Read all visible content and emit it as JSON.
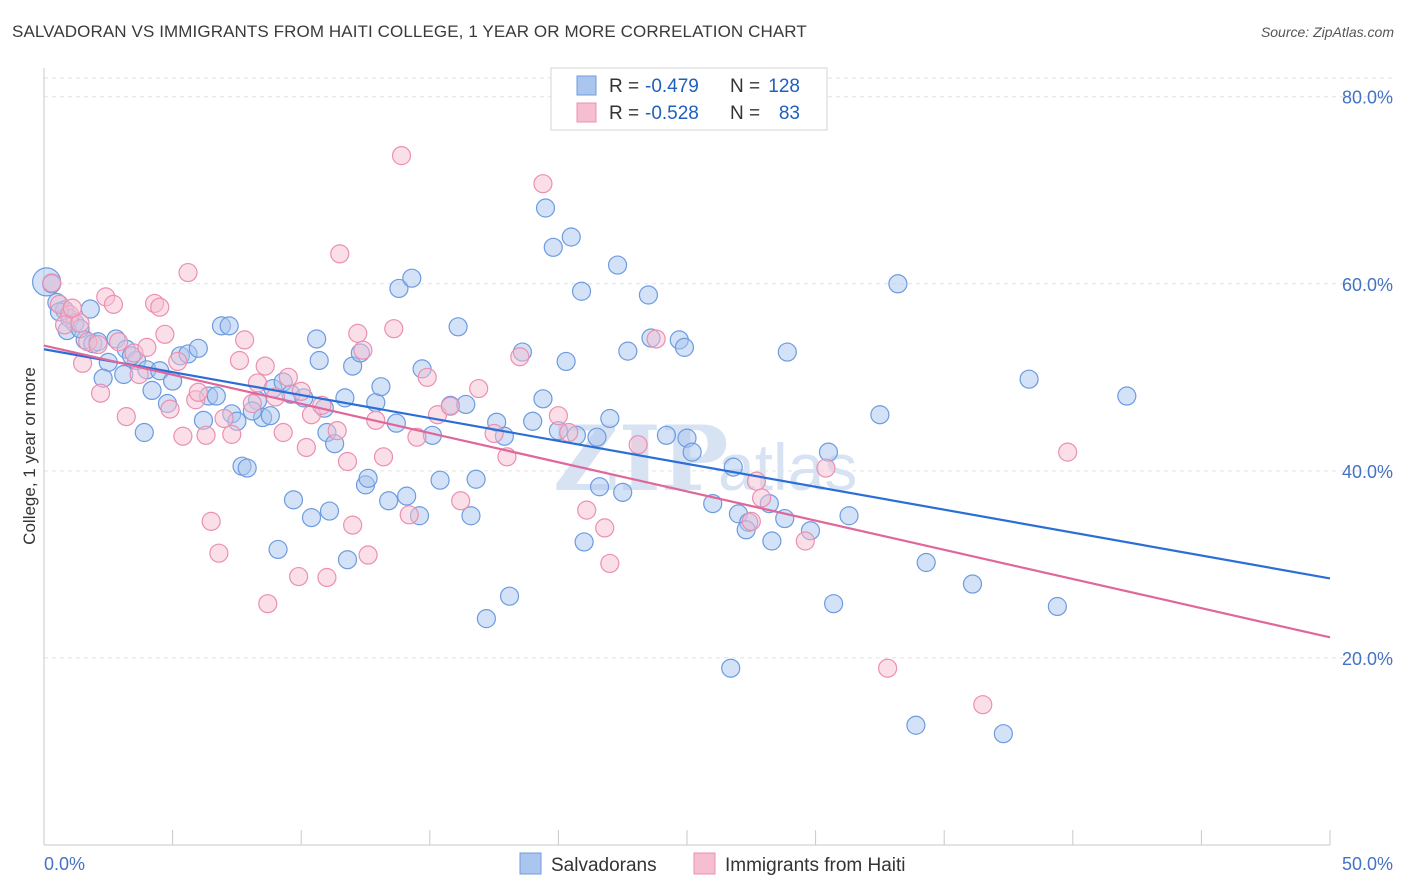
{
  "title": "SALVADORAN VS IMMIGRANTS FROM HAITI COLLEGE, 1 YEAR OR MORE CORRELATION CHART",
  "source": "Source: ZipAtlas.com",
  "watermark": {
    "zip": "ZIP",
    "atlas": "atlas"
  },
  "legend": {
    "r_label": "R =",
    "n_label": "N =",
    "rows": [
      {
        "r": "-0.479",
        "n": "128"
      },
      {
        "r": "-0.528",
        "n": "83"
      }
    ]
  },
  "colors": {
    "blue_fill": "#aac6ef",
    "blue_stroke": "#6d9be0",
    "blue_line": "#2b6fd6",
    "pink_fill": "#f6bfd1",
    "pink_stroke": "#ec8fb0",
    "pink_line": "#e0679a"
  },
  "chart_data": {
    "type": "scatter",
    "title": "SALVADORAN VS IMMIGRANTS FROM HAITI COLLEGE, 1 YEAR OR MORE CORRELATION CHART",
    "xlabel": "",
    "ylabel": "College, 1 year or more",
    "xlim": [
      0,
      50
    ],
    "ylim": [
      0,
      82
    ],
    "x_tick_labels": [
      "0.0%",
      "50.0%"
    ],
    "y_ticks": [
      20,
      40,
      60,
      80
    ],
    "y_tick_labels": [
      "20.0%",
      "40.0%",
      "60.0%",
      "80.0%"
    ],
    "grid": true,
    "legend_position": "top-center",
    "series": [
      {
        "name": "Salvadorans",
        "color": "#6d9be0",
        "trend": {
          "x": [
            0,
            50
          ],
          "y": [
            53.0,
            28.5
          ]
        },
        "points": [
          [
            0.1,
            60.2
          ],
          [
            0.3,
            60.0
          ],
          [
            0.5,
            58.0
          ],
          [
            0.8,
            57.2
          ],
          [
            1.0,
            56.3
          ],
          [
            1.2,
            55.8
          ],
          [
            0.9,
            55.0
          ],
          [
            1.8,
            57.3
          ],
          [
            1.6,
            54.0
          ],
          [
            1.9,
            53.6
          ],
          [
            2.8,
            54.1
          ],
          [
            3.2,
            53.0
          ],
          [
            2.5,
            51.6
          ],
          [
            2.3,
            49.9
          ],
          [
            3.1,
            50.3
          ],
          [
            3.6,
            51.8
          ],
          [
            4.0,
            50.8
          ],
          [
            4.5,
            50.7
          ],
          [
            3.4,
            52.3
          ],
          [
            3.9,
            44.1
          ],
          [
            4.8,
            47.2
          ],
          [
            5.3,
            52.3
          ],
          [
            5.6,
            52.5
          ],
          [
            6.0,
            53.1
          ],
          [
            6.2,
            45.4
          ],
          [
            6.4,
            48.0
          ],
          [
            6.7,
            48.0
          ],
          [
            6.9,
            55.5
          ],
          [
            7.2,
            55.5
          ],
          [
            7.3,
            46.1
          ],
          [
            7.5,
            45.3
          ],
          [
            7.7,
            40.5
          ],
          [
            7.9,
            40.3
          ],
          [
            8.3,
            47.5
          ],
          [
            8.5,
            45.7
          ],
          [
            8.9,
            48.8
          ],
          [
            8.8,
            45.9
          ],
          [
            9.1,
            31.6
          ],
          [
            9.3,
            49.5
          ],
          [
            9.6,
            48.2
          ],
          [
            9.7,
            36.9
          ],
          [
            10.1,
            47.8
          ],
          [
            10.4,
            35.0
          ],
          [
            10.6,
            54.1
          ],
          [
            10.7,
            51.8
          ],
          [
            11.0,
            44.1
          ],
          [
            11.3,
            42.9
          ],
          [
            11.1,
            35.7
          ],
          [
            11.7,
            47.8
          ],
          [
            11.8,
            30.5
          ],
          [
            12.0,
            51.2
          ],
          [
            12.3,
            52.6
          ],
          [
            12.5,
            38.5
          ],
          [
            12.6,
            39.2
          ],
          [
            12.9,
            47.3
          ],
          [
            13.1,
            49.0
          ],
          [
            13.4,
            36.8
          ],
          [
            13.7,
            45.1
          ],
          [
            14.1,
            37.3
          ],
          [
            14.6,
            35.2
          ],
          [
            14.7,
            50.9
          ],
          [
            13.8,
            59.5
          ],
          [
            14.3,
            60.6
          ],
          [
            15.1,
            43.8
          ],
          [
            15.4,
            39.0
          ],
          [
            15.8,
            47.0
          ],
          [
            16.1,
            55.4
          ],
          [
            16.4,
            47.1
          ],
          [
            16.6,
            35.2
          ],
          [
            16.8,
            39.1
          ],
          [
            17.2,
            24.2
          ],
          [
            17.6,
            45.2
          ],
          [
            17.9,
            43.7
          ],
          [
            18.1,
            26.6
          ],
          [
            18.6,
            52.7
          ],
          [
            19.0,
            45.3
          ],
          [
            19.4,
            47.7
          ],
          [
            19.5,
            68.1
          ],
          [
            19.8,
            63.9
          ],
          [
            20.0,
            44.3
          ],
          [
            20.3,
            51.7
          ],
          [
            20.5,
            65.0
          ],
          [
            20.7,
            43.8
          ],
          [
            20.9,
            59.2
          ],
          [
            21.0,
            32.4
          ],
          [
            21.5,
            43.6
          ],
          [
            21.6,
            38.3
          ],
          [
            22.0,
            45.6
          ],
          [
            22.3,
            62.0
          ],
          [
            22.5,
            37.7
          ],
          [
            22.7,
            52.8
          ],
          [
            23.5,
            58.8
          ],
          [
            23.6,
            54.2
          ],
          [
            24.2,
            43.8
          ],
          [
            24.7,
            54.0
          ],
          [
            24.9,
            53.2
          ],
          [
            25.0,
            43.5
          ],
          [
            25.2,
            42.0
          ],
          [
            26.0,
            36.5
          ],
          [
            26.7,
            18.9
          ],
          [
            26.8,
            40.4
          ],
          [
            27.0,
            35.4
          ],
          [
            27.4,
            34.5
          ],
          [
            27.3,
            33.7
          ],
          [
            28.2,
            36.5
          ],
          [
            28.3,
            32.5
          ],
          [
            28.8,
            34.9
          ],
          [
            28.9,
            52.7
          ],
          [
            29.8,
            33.6
          ],
          [
            30.5,
            42.0
          ],
          [
            30.7,
            25.8
          ],
          [
            31.3,
            35.2
          ],
          [
            32.5,
            46.0
          ],
          [
            33.2,
            60.0
          ],
          [
            33.9,
            12.8
          ],
          [
            34.3,
            30.2
          ],
          [
            36.1,
            27.9
          ],
          [
            37.3,
            11.9
          ],
          [
            38.3,
            49.8
          ],
          [
            39.4,
            25.5
          ],
          [
            42.1,
            48.0
          ],
          [
            0.6,
            57.0
          ],
          [
            1.4,
            55.2
          ],
          [
            2.1,
            53.8
          ],
          [
            4.2,
            48.6
          ],
          [
            5.0,
            49.6
          ],
          [
            8.1,
            46.4
          ],
          [
            10.9,
            46.7
          ]
        ]
      },
      {
        "name": "Immigrants from Haiti",
        "color": "#ec8fb0",
        "trend": {
          "x": [
            0,
            50
          ],
          "y": [
            53.4,
            22.2
          ]
        },
        "points": [
          [
            0.3,
            60.1
          ],
          [
            0.6,
            57.8
          ],
          [
            1.0,
            56.7
          ],
          [
            0.8,
            55.6
          ],
          [
            1.4,
            55.8
          ],
          [
            1.7,
            53.8
          ],
          [
            2.1,
            53.5
          ],
          [
            1.5,
            51.5
          ],
          [
            2.2,
            48.3
          ],
          [
            2.4,
            58.6
          ],
          [
            2.7,
            57.8
          ],
          [
            2.9,
            53.8
          ],
          [
            3.2,
            45.8
          ],
          [
            3.5,
            52.6
          ],
          [
            3.7,
            50.3
          ],
          [
            4.0,
            53.2
          ],
          [
            4.3,
            57.9
          ],
          [
            4.5,
            57.5
          ],
          [
            4.7,
            54.6
          ],
          [
            4.9,
            46.6
          ],
          [
            5.2,
            51.7
          ],
          [
            5.4,
            43.7
          ],
          [
            5.6,
            61.2
          ],
          [
            5.9,
            47.6
          ],
          [
            6.0,
            48.4
          ],
          [
            6.3,
            43.8
          ],
          [
            6.5,
            34.6
          ],
          [
            6.8,
            31.2
          ],
          [
            7.0,
            45.6
          ],
          [
            7.3,
            43.9
          ],
          [
            7.6,
            51.8
          ],
          [
            7.8,
            54.0
          ],
          [
            8.1,
            47.2
          ],
          [
            8.3,
            49.4
          ],
          [
            8.6,
            51.2
          ],
          [
            8.7,
            25.8
          ],
          [
            9.0,
            47.9
          ],
          [
            9.3,
            44.1
          ],
          [
            9.5,
            50.0
          ],
          [
            9.9,
            28.7
          ],
          [
            10.0,
            48.5
          ],
          [
            10.2,
            42.5
          ],
          [
            10.4,
            46.0
          ],
          [
            10.8,
            47.0
          ],
          [
            11.0,
            28.6
          ],
          [
            11.4,
            44.3
          ],
          [
            11.5,
            63.2
          ],
          [
            11.8,
            41.0
          ],
          [
            12.0,
            34.2
          ],
          [
            12.2,
            54.7
          ],
          [
            12.4,
            52.9
          ],
          [
            12.6,
            31.0
          ],
          [
            12.9,
            45.4
          ],
          [
            13.2,
            41.5
          ],
          [
            13.6,
            55.2
          ],
          [
            13.9,
            73.7
          ],
          [
            14.2,
            35.3
          ],
          [
            14.5,
            43.6
          ],
          [
            14.9,
            50.0
          ],
          [
            15.3,
            46.0
          ],
          [
            15.8,
            46.9
          ],
          [
            16.2,
            36.8
          ],
          [
            16.9,
            48.8
          ],
          [
            17.5,
            44.0
          ],
          [
            18.0,
            41.5
          ],
          [
            18.5,
            52.2
          ],
          [
            19.4,
            70.7
          ],
          [
            20.0,
            45.9
          ],
          [
            20.4,
            44.1
          ],
          [
            21.1,
            35.8
          ],
          [
            21.8,
            33.9
          ],
          [
            22.0,
            30.1
          ],
          [
            23.1,
            42.8
          ],
          [
            23.8,
            54.1
          ],
          [
            27.5,
            34.6
          ],
          [
            27.7,
            38.9
          ],
          [
            27.9,
            37.1
          ],
          [
            29.6,
            32.5
          ],
          [
            30.4,
            40.3
          ],
          [
            32.8,
            18.9
          ],
          [
            36.5,
            15.0
          ],
          [
            39.8,
            42.0
          ],
          [
            1.1,
            57.4
          ]
        ]
      }
    ]
  },
  "bottom_legend": [
    {
      "label": "Salvadorans"
    },
    {
      "label": "Immigrants from Haiti"
    }
  ]
}
